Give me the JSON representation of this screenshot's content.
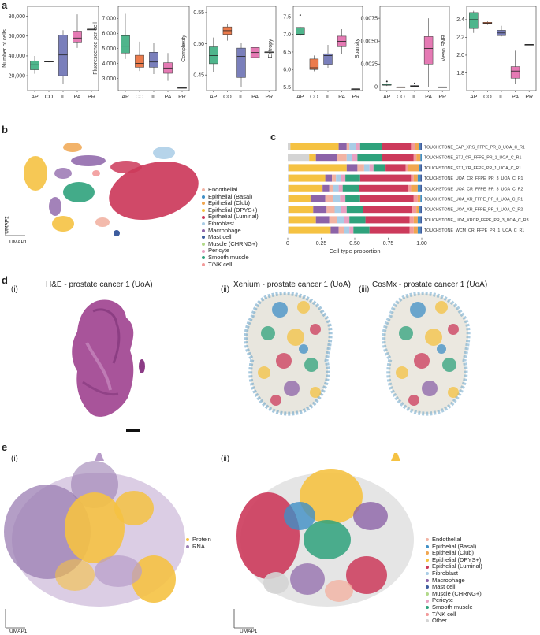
{
  "panel_labels": {
    "a": "a",
    "b": "b",
    "c": "c",
    "d": "d",
    "e": "e"
  },
  "colors": {
    "AP": "#4fb58c",
    "CO": "#ec7b4c",
    "IL": "#7a7fbb",
    "PA": "#e57ab4",
    "PR": "#5a5a5a",
    "Endothelial": "#f2b3a3",
    "Epithelial (Basal)": "#3f8fc6",
    "Epithelial (Club)": "#f0a650",
    "Epithelial (DPYS+)": "#f5c242",
    "Epithelial (Luminal)": "#cc3a5b",
    "Fibroblast": "#a9cde6",
    "Macrophage": "#8c63a8",
    "Mast cell": "#3d5c9e",
    "Muscle (CHRNG+)": "#b2d98a",
    "Pericyte": "#e9a0c1",
    "Smooth muscle": "#2fa27c",
    "T/NK cell": "#f29a9a",
    "Other": "#d4d4d4",
    "Protein": "#f5c242",
    "RNA": "#9b7eb3"
  },
  "chart_data": [
    {
      "type": "box",
      "panel": "a",
      "ylabel": "Number of cells",
      "categories": [
        "AP",
        "CO",
        "IL",
        "PA",
        "PR"
      ],
      "yticks": [
        "20,000",
        "40,000",
        "60,000",
        "80,000"
      ],
      "ylim": [
        5000,
        90000
      ],
      "boxes": [
        {
          "min": 22000,
          "q1": 26000,
          "median": 31000,
          "q3": 35000,
          "max": 40000
        },
        {
          "min": 33500,
          "q1": 33800,
          "median": 34200,
          "q3": 34600,
          "max": 35000
        },
        {
          "min": 12000,
          "q1": 20000,
          "median": 41000,
          "q3": 61000,
          "max": 66000
        },
        {
          "min": 48000,
          "q1": 54000,
          "median": 58000,
          "q3": 65000,
          "max": 82000
        },
        {
          "min": 67000,
          "q1": 67000,
          "median": 67000,
          "q3": 67000,
          "max": 67000
        }
      ]
    },
    {
      "type": "box",
      "panel": "a",
      "ylabel": "Fluorescence per cell",
      "categories": [
        "AP",
        "CO",
        "IL",
        "PA",
        "PR"
      ],
      "yticks": [
        "3,000",
        "4,000",
        "5,000",
        "6,000",
        "7,000"
      ],
      "ylim": [
        2200,
        7800
      ],
      "boxes": [
        {
          "min": 4300,
          "q1": 4700,
          "median": 5150,
          "q3": 5850,
          "max": 7300
        },
        {
          "min": 3500,
          "q1": 3750,
          "median": 4000,
          "q3": 4550,
          "max": 5450
        },
        {
          "min": 3300,
          "q1": 3750,
          "median": 4100,
          "q3": 4750,
          "max": 5350
        },
        {
          "min": 2850,
          "q1": 3350,
          "median": 3700,
          "q3": 4050,
          "max": 4700
        },
        {
          "min": 2400,
          "q1": 2400,
          "median": 2400,
          "q3": 2400,
          "max": 2400
        }
      ]
    },
    {
      "type": "box",
      "panel": "a",
      "ylabel": "Complexity",
      "categories": [
        "AP",
        "CO",
        "IL",
        "PA",
        "PR"
      ],
      "yticks": [
        "0.45",
        "0.50",
        "0.55"
      ],
      "ylim": [
        0.425,
        0.56
      ],
      "boxes": [
        {
          "min": 0.455,
          "q1": 0.468,
          "median": 0.481,
          "q3": 0.495,
          "max": 0.51
        },
        {
          "min": 0.505,
          "q1": 0.515,
          "median": 0.521,
          "q3": 0.527,
          "max": 0.532
        },
        {
          "min": 0.43,
          "q1": 0.446,
          "median": 0.48,
          "q3": 0.493,
          "max": 0.502
        },
        {
          "min": 0.465,
          "q1": 0.478,
          "median": 0.486,
          "q3": 0.494,
          "max": 0.503
        },
        {
          "min": 0.487,
          "q1": 0.487,
          "median": 0.487,
          "q3": 0.487,
          "max": 0.487
        }
      ]
    },
    {
      "type": "box",
      "panel": "a",
      "ylabel": "Entropy",
      "categories": [
        "AP",
        "CO",
        "IL",
        "PA",
        "PR"
      ],
      "yticks": [
        "5.5",
        "6.0",
        "6.5",
        "7.0",
        "7.5"
      ],
      "ylim": [
        5.4,
        7.8
      ],
      "boxes": [
        {
          "min": 6.95,
          "q1": 6.98,
          "median": 7.0,
          "q3": 7.2,
          "max": 7.22,
          "outliers": [
            7.55
          ]
        },
        {
          "min": 5.95,
          "q1": 6.0,
          "median": 6.05,
          "q3": 6.3,
          "max": 6.4
        },
        {
          "min": 6.05,
          "q1": 6.15,
          "median": 6.4,
          "q3": 6.45,
          "max": 6.7
        },
        {
          "min": 6.45,
          "q1": 6.65,
          "median": 6.8,
          "q3": 6.95,
          "max": 7.15
        },
        {
          "min": 5.45,
          "q1": 5.45,
          "median": 5.45,
          "q3": 5.45,
          "max": 5.45
        }
      ]
    },
    {
      "type": "box",
      "panel": "a",
      "ylabel": "Sparsity",
      "categories": [
        "AP",
        "CO",
        "IL",
        "PA",
        "PR"
      ],
      "yticks": [
        "0",
        "0.0025",
        "0.0050",
        "0.0075"
      ],
      "ylim": [
        -0.0004,
        0.0088
      ],
      "boxes": [
        {
          "min": 0.0001,
          "q1": 0.0002,
          "median": 0.0002,
          "q3": 0.0003,
          "max": 0.0004,
          "outliers": [
            0.0006
          ]
        },
        {
          "min": 0.0,
          "q1": 0.0,
          "median": 0.0,
          "q3": 0.0,
          "max": 0.0
        },
        {
          "min": 0.0,
          "q1": 5e-05,
          "median": 0.0001,
          "q3": 0.00015,
          "max": 0.0002,
          "outliers": [
            0.0004
          ]
        },
        {
          "min": 0.0,
          "q1": 0.0025,
          "median": 0.0042,
          "q3": 0.0055,
          "max": 0.0075
        },
        {
          "min": 0.0,
          "q1": 0.0,
          "median": 0.0,
          "q3": 0.0,
          "max": 0.0
        }
      ]
    },
    {
      "type": "box",
      "panel": "a",
      "ylabel": "Mean SNR",
      "categories": [
        "AP",
        "CO",
        "IL",
        "PA",
        "PR"
      ],
      "yticks": [
        "1.8",
        "2.0",
        "2.2",
        "2.4"
      ],
      "ylim": [
        1.6,
        2.55
      ],
      "boxes": [
        {
          "min": 2.25,
          "q1": 2.3,
          "median": 2.4,
          "q3": 2.48,
          "max": 2.5
        },
        {
          "min": 2.34,
          "q1": 2.35,
          "median": 2.36,
          "q3": 2.37,
          "max": 2.38
        },
        {
          "min": 2.21,
          "q1": 2.22,
          "median": 2.25,
          "q3": 2.28,
          "max": 2.33
        },
        {
          "min": 1.68,
          "q1": 1.74,
          "median": 1.82,
          "q3": 1.87,
          "max": 2.05
        },
        {
          "min": 2.12,
          "q1": 2.12,
          "median": 2.12,
          "q3": 2.12,
          "max": 2.12
        }
      ]
    },
    {
      "type": "stacked_bar",
      "panel": "c",
      "xlabel": "Cell type proportion",
      "xticks": [
        "0",
        "0.25",
        "0.50",
        "0.75",
        "1.00"
      ],
      "categories": [
        "Other",
        "Epithelial (DPYS+)",
        "Macrophage",
        "Endothelial",
        "Fibroblast",
        "Pericyte",
        "Smooth muscle",
        "Epithelial (Luminal)",
        "T/NK cell",
        "Epithelial (Club)",
        "Epithelial (Basal)",
        "Mast cell"
      ],
      "rows": [
        {
          "label": "TOUCHSTONE_EAP_XRS_FFPE_PR_3_UOA_C_R1",
          "values": [
            0.02,
            0.36,
            0.06,
            0.02,
            0.05,
            0.03,
            0.16,
            0.22,
            0.03,
            0.03,
            0.01,
            0.01
          ]
        },
        {
          "label": "TOUCHSTONE_STJ_CR_FFPE_PR_1_UOA_C_R1",
          "values": [
            0.16,
            0.05,
            0.16,
            0.07,
            0.04,
            0.04,
            0.18,
            0.24,
            0.02,
            0.03,
            0.01,
            0.0
          ]
        },
        {
          "label": "TOUCHSTONE_STJ_XR_FFPE_PR_1_UOA_C_R1",
          "values": [
            0.01,
            0.43,
            0.08,
            0.05,
            0.04,
            0.03,
            0.09,
            0.15,
            0.02,
            0.08,
            0.01,
            0.01
          ]
        },
        {
          "label": "TOUCHSTONE_UOA_CR_FFPE_PR_3_UOA_C_R1",
          "values": [
            0.01,
            0.27,
            0.05,
            0.03,
            0.04,
            0.03,
            0.11,
            0.38,
            0.02,
            0.03,
            0.02,
            0.01
          ]
        },
        {
          "label": "TOUCHSTONE_UOA_CR_FFPE_PR_3_UOA_C_R2",
          "values": [
            0.01,
            0.25,
            0.05,
            0.03,
            0.04,
            0.03,
            0.12,
            0.37,
            0.02,
            0.05,
            0.02,
            0.01
          ]
        },
        {
          "label": "TOUCHSTONE_UOA_XR_FFPE_PR_3_UOA_C_R1",
          "values": [
            0.01,
            0.16,
            0.11,
            0.06,
            0.05,
            0.04,
            0.11,
            0.4,
            0.03,
            0.02,
            0.01,
            0.0
          ]
        },
        {
          "label": "TOUCHSTONE_UOA_XR_FFPE_PR_3_UOA_C_R2",
          "values": [
            0.01,
            0.18,
            0.1,
            0.06,
            0.05,
            0.04,
            0.12,
            0.37,
            0.03,
            0.02,
            0.01,
            0.01
          ]
        },
        {
          "label": "TOUCHSTONE_UOA_XRCP_FFPE_PR_3_UOA_C_R3",
          "values": [
            0.01,
            0.2,
            0.1,
            0.06,
            0.05,
            0.04,
            0.12,
            0.33,
            0.03,
            0.03,
            0.02,
            0.01
          ]
        },
        {
          "label": "TOUCHSTONE_WCM_CR_FFPE_PR_1_UOA_C_R1",
          "values": [
            0.01,
            0.31,
            0.06,
            0.04,
            0.04,
            0.03,
            0.12,
            0.3,
            0.03,
            0.03,
            0.02,
            0.01
          ]
        }
      ]
    }
  ],
  "panel_b": {
    "axis_x": "UMAP1",
    "axis_y": "UMAP2",
    "legend": [
      "Endothelial",
      "Epithelial (Basal)",
      "Epithelial (Club)",
      "Epithelial (DPYS+)",
      "Epithelial (Luminal)",
      "Fibroblast",
      "Macrophage",
      "Mast cell",
      "Muscle (CHRNG+)",
      "Pericyte",
      "Smooth muscle",
      "T/NK cell"
    ]
  },
  "panel_d": {
    "sub_i": "(i)",
    "title_i": "H&E - prostate cancer 1 (UoA)",
    "sub_ii": "(ii)",
    "title_ii": "Xenium - prostate cancer 1 (UoA)",
    "sub_iii": "(iii)",
    "title_iii": "CosMx - prostate cancer 1 (UoA)"
  },
  "panel_e": {
    "sub_i": "(i)",
    "sub_ii": "(ii)",
    "axis_x": "UMAP1",
    "axis_y": "UMAP2",
    "legend_i": [
      "Protein",
      "RNA"
    ],
    "legend_ii": [
      "Endothelial",
      "Epithelial (Basal)",
      "Epithelial (Club)",
      "Epithelial (DPYS+)",
      "Epithelial (Luminal)",
      "Fibroblast",
      "Macrophage",
      "Mast cell",
      "Muscle (CHRNG+)",
      "Pericyte",
      "Smooth muscle",
      "T/NK cell",
      "Other"
    ]
  }
}
